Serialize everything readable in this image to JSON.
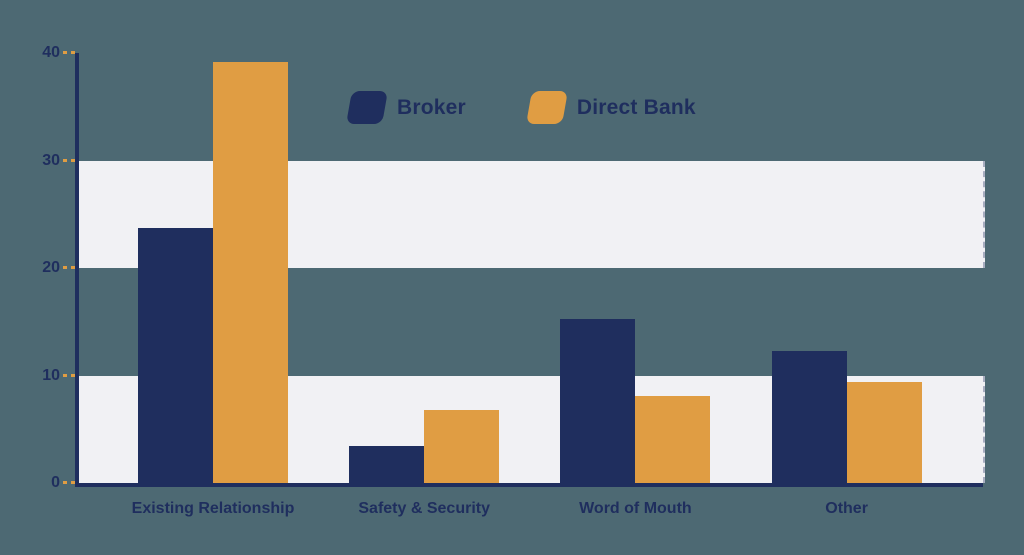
{
  "chart_data": {
    "type": "bar",
    "title": "",
    "xlabel": "",
    "ylabel": "",
    "categories": [
      "Existing Relationship",
      "Safety & Security",
      "Word of Mouth",
      "Other"
    ],
    "series": [
      {
        "name": "Broker",
        "color": "#1f2e5e",
        "values": [
          23.7,
          3.4,
          15.3,
          12.3
        ]
      },
      {
        "name": "Direct Bank",
        "color": "#e09d43",
        "values": [
          39.2,
          6.8,
          8.1,
          9.4
        ]
      }
    ],
    "ylim": [
      0,
      40
    ],
    "yticks": [
      0,
      10,
      20,
      30,
      40
    ],
    "grid": "alternating horizontal bands",
    "bands": [
      [
        0,
        10
      ],
      [
        20,
        30
      ]
    ],
    "legend_position": "top-center",
    "colors": {
      "background": "#4d6973",
      "band": "#f1f1f4",
      "axis": "#1f2e5e",
      "tick": "#e09d43",
      "label": "#1f2e5e"
    }
  }
}
